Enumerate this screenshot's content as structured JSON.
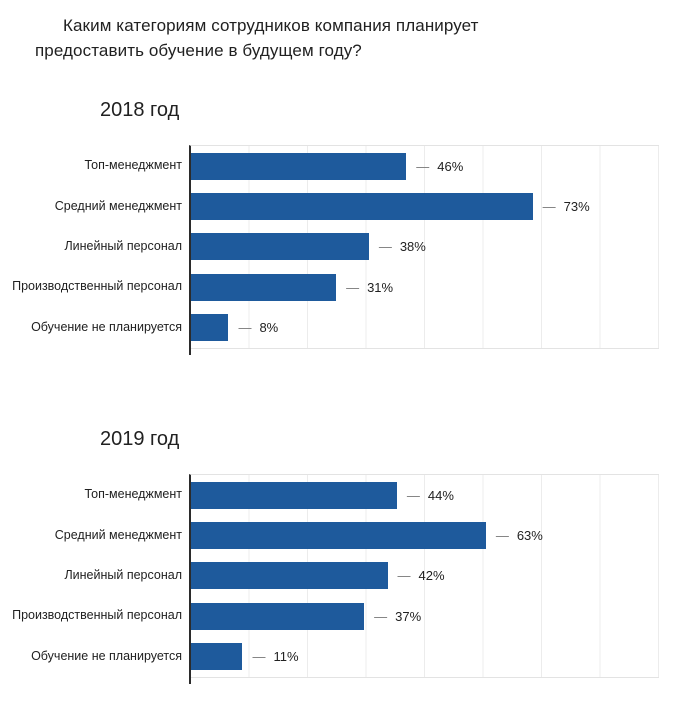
{
  "title": {
    "lines": [
      "Каким категориям сотрудников компания планирует",
      "предоставить обучение в будущем году?"
    ],
    "full": "Каким категориям сотрудников компания планирует предоставить обучение в будущем году?"
  },
  "colors": {
    "bar": "#1e5a9c",
    "dash": "#757575",
    "value_text": "#212121",
    "grid": "#ececec",
    "axis": "#2b2b2b",
    "label_text": "#212121"
  },
  "chart_data": [
    {
      "type": "bar",
      "orientation": "horizontal",
      "title": "2018 год",
      "categories": [
        "Топ-менеджмент",
        "Средний менеджмент",
        "Линейный персонал",
        "Производственный персонал",
        "Обучение не планируется"
      ],
      "values": [
        46,
        73,
        38,
        31,
        8
      ],
      "unit": "%",
      "xlim": [
        0,
        100
      ],
      "grid_divisions": 8,
      "grid": true,
      "legend": false
    },
    {
      "type": "bar",
      "orientation": "horizontal",
      "title": "2019 год",
      "categories": [
        "Топ-менеджмент",
        "Средний менеджмент",
        "Линейный персонал",
        "Производственный персонал",
        "Обучение не планируется"
      ],
      "values": [
        44,
        63,
        42,
        37,
        11
      ],
      "unit": "%",
      "xlim": [
        0,
        100
      ],
      "grid_divisions": 8,
      "grid": true,
      "legend": false
    }
  ]
}
